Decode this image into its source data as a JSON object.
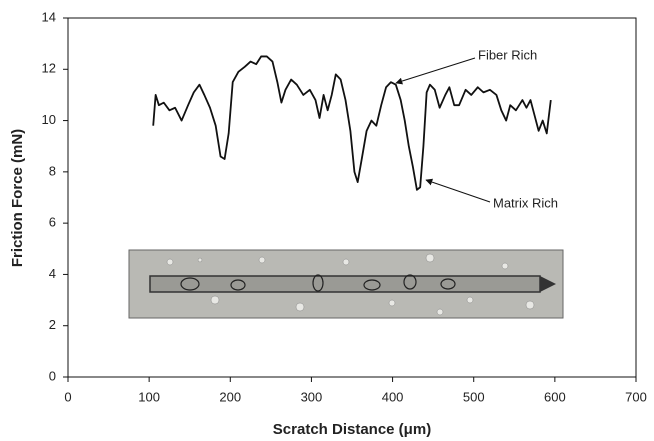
{
  "chart_data": {
    "type": "line",
    "x_label": "Scratch Distance (μm)",
    "y_label": "Friction Force (mN)",
    "annotations": [
      "Fiber Rich",
      "Matrix Rich"
    ],
    "color": "#111111",
    "xlim": [
      0,
      700
    ],
    "xticks": [
      0,
      100,
      200,
      300,
      400,
      500,
      600,
      700
    ],
    "ylim": [
      0,
      14
    ],
    "yticks": [
      0,
      2,
      4,
      6,
      8,
      10,
      12,
      14
    ],
    "grid": false,
    "x": [
      105,
      108,
      112,
      118,
      125,
      132,
      140,
      148,
      155,
      162,
      168,
      175,
      182,
      188,
      193,
      198,
      203,
      210,
      218,
      225,
      232,
      238,
      245,
      252,
      258,
      263,
      268,
      275,
      282,
      290,
      298,
      305,
      310,
      315,
      320,
      325,
      330,
      336,
      342,
      348,
      353,
      357,
      362,
      368,
      374,
      380,
      386,
      392,
      398,
      404,
      410,
      415,
      420,
      425,
      430,
      434,
      438,
      442,
      446,
      452,
      458,
      465,
      470,
      476,
      482,
      490,
      497,
      505,
      512,
      520,
      528,
      534,
      540,
      545,
      552,
      560,
      565,
      570,
      575,
      580,
      585,
      590,
      595
    ],
    "values": [
      9.8,
      11.0,
      10.6,
      10.7,
      10.4,
      10.5,
      10.0,
      10.6,
      11.1,
      11.4,
      11.0,
      10.5,
      9.8,
      8.6,
      8.5,
      9.5,
      11.5,
      11.9,
      12.1,
      12.3,
      12.2,
      12.5,
      12.5,
      12.3,
      11.5,
      10.7,
      11.2,
      11.6,
      11.4,
      11.0,
      11.2,
      10.8,
      10.1,
      11.0,
      10.4,
      11.0,
      11.8,
      11.6,
      10.8,
      9.6,
      8.0,
      7.6,
      8.5,
      9.6,
      10.0,
      9.8,
      10.6,
      11.3,
      11.5,
      11.4,
      10.8,
      10.0,
      9.0,
      8.2,
      7.3,
      7.4,
      9.0,
      11.1,
      11.4,
      11.2,
      10.5,
      11.0,
      11.3,
      10.6,
      10.6,
      11.2,
      11.0,
      11.3,
      11.1,
      11.2,
      11.0,
      10.4,
      10.0,
      10.6,
      10.4,
      10.8,
      10.5,
      10.8,
      10.2,
      9.6,
      10.0,
      9.5,
      10.8
    ]
  }
}
